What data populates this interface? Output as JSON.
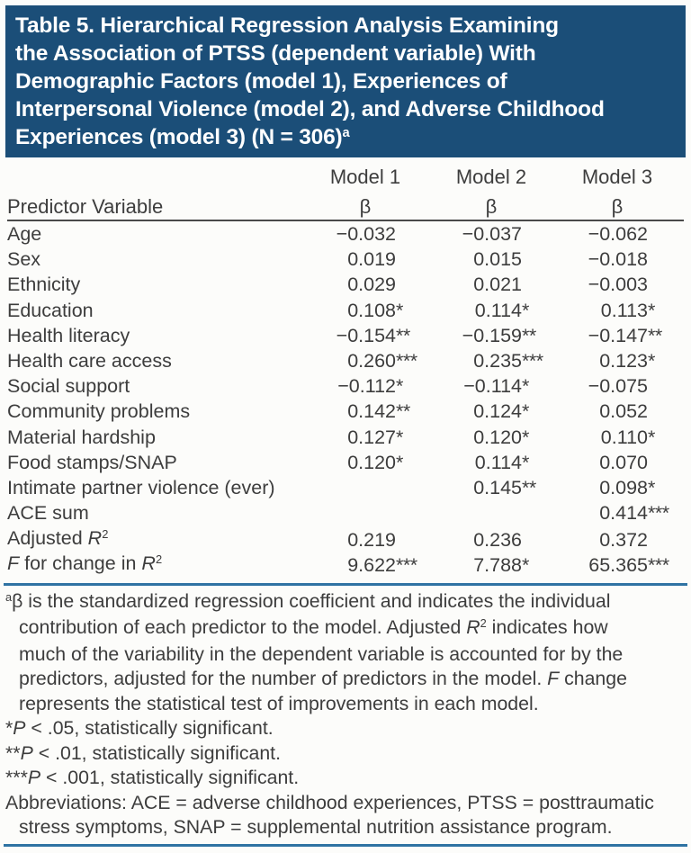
{
  "colors": {
    "title_bg": "#1b4e78",
    "title_text": "#ffffff",
    "body_text": "#3d3d3d",
    "header_rule": "#4a4a4a",
    "blue_rule": "#2f73a3",
    "page_bg": "#fcfcfa"
  },
  "title": {
    "lines": [
      [
        {
          "t": "Table 5. Hierarchical Regression Analysis Examining"
        }
      ],
      [
        {
          "t": "the Association of PTSS (dependent variable) With"
        }
      ],
      [
        {
          "t": "Demographic Factors (model 1), Experiences of"
        }
      ],
      [
        {
          "t": "Interpersonal Violence (model 2), and Adverse Childhood"
        }
      ],
      [
        {
          "t": "Experiences (model 3) (N = 306)"
        },
        {
          "t": "a",
          "sup": true
        }
      ]
    ]
  },
  "table": {
    "predictor_header": "Predictor Variable",
    "model_headers": [
      "Model 1",
      "Model 2",
      "Model 3"
    ],
    "beta_symbol": "β",
    "rows": [
      {
        "label": [
          {
            "t": "Age"
          }
        ],
        "values": [
          {
            "n": "−0.032",
            "s": ""
          },
          {
            "n": "−0.037",
            "s": ""
          },
          {
            "n": "−0.062",
            "s": ""
          }
        ]
      },
      {
        "label": [
          {
            "t": "Sex"
          }
        ],
        "values": [
          {
            "n": "0.019",
            "s": ""
          },
          {
            "n": "0.015",
            "s": ""
          },
          {
            "n": "−0.018",
            "s": ""
          }
        ]
      },
      {
        "label": [
          {
            "t": "Ethnicity"
          }
        ],
        "values": [
          {
            "n": "0.029",
            "s": ""
          },
          {
            "n": "0.021",
            "s": ""
          },
          {
            "n": "−0.003",
            "s": ""
          }
        ]
      },
      {
        "label": [
          {
            "t": "Education"
          }
        ],
        "values": [
          {
            "n": "0.108",
            "s": "*"
          },
          {
            "n": "0.114",
            "s": "*"
          },
          {
            "n": "0.113",
            "s": "*"
          }
        ]
      },
      {
        "label": [
          {
            "t": "Health literacy"
          }
        ],
        "values": [
          {
            "n": "−0.154",
            "s": "**"
          },
          {
            "n": "−0.159",
            "s": "**"
          },
          {
            "n": "−0.147",
            "s": "**"
          }
        ]
      },
      {
        "label": [
          {
            "t": "Health care access"
          }
        ],
        "values": [
          {
            "n": "0.260",
            "s": "***"
          },
          {
            "n": "0.235",
            "s": "***"
          },
          {
            "n": "0.123",
            "s": "*"
          }
        ]
      },
      {
        "label": [
          {
            "t": "Social support"
          }
        ],
        "values": [
          {
            "n": "−0.112",
            "s": "*"
          },
          {
            "n": "−0.114",
            "s": "*"
          },
          {
            "n": "−0.075",
            "s": ""
          }
        ]
      },
      {
        "label": [
          {
            "t": "Community problems"
          }
        ],
        "values": [
          {
            "n": "0.142",
            "s": "**"
          },
          {
            "n": "0.124",
            "s": "*"
          },
          {
            "n": "0.052",
            "s": ""
          }
        ]
      },
      {
        "label": [
          {
            "t": "Material hardship"
          }
        ],
        "values": [
          {
            "n": "0.127",
            "s": "*"
          },
          {
            "n": "0.120",
            "s": "*"
          },
          {
            "n": "0.110",
            "s": "*"
          }
        ]
      },
      {
        "label": [
          {
            "t": "Food stamps/SNAP"
          }
        ],
        "values": [
          {
            "n": "0.120",
            "s": "*"
          },
          {
            "n": "0.114",
            "s": "*"
          },
          {
            "n": "0.070",
            "s": ""
          }
        ]
      },
      {
        "label": [
          {
            "t": "Intimate partner violence (ever)"
          }
        ],
        "values": [
          {
            "n": "",
            "s": ""
          },
          {
            "n": "0.145",
            "s": "**"
          },
          {
            "n": "0.098",
            "s": "*"
          }
        ]
      },
      {
        "label": [
          {
            "t": "ACE sum"
          }
        ],
        "values": [
          {
            "n": "",
            "s": ""
          },
          {
            "n": "",
            "s": ""
          },
          {
            "n": "0.414",
            "s": "***"
          }
        ]
      },
      {
        "label": [
          {
            "t": "Adjusted "
          },
          {
            "t": "R",
            "i": true
          },
          {
            "t": "2",
            "sup": true
          }
        ],
        "values": [
          {
            "n": "0.219",
            "s": ""
          },
          {
            "n": "0.236",
            "s": ""
          },
          {
            "n": "0.372",
            "s": ""
          }
        ]
      },
      {
        "label": [
          {
            "t": "F",
            "i": true
          },
          {
            "t": " for change in "
          },
          {
            "t": "R",
            "i": true
          },
          {
            "t": "2",
            "sup": true
          }
        ],
        "values": [
          {
            "n": "9.622",
            "s": "***"
          },
          {
            "n": "7.788",
            "s": "*"
          },
          {
            "n": "65.365",
            "s": "***"
          }
        ]
      }
    ]
  },
  "footnotes": [
    {
      "lines": [
        {
          "indent": false,
          "segs": [
            {
              "t": "a",
              "sup": true
            },
            {
              "t": "β is the standardized regression coefficient and indicates the individual"
            }
          ]
        },
        {
          "indent": true,
          "segs": [
            {
              "t": "contribution of each predictor to the model. Adjusted "
            },
            {
              "t": "R",
              "i": true
            },
            {
              "t": "2",
              "sup": true
            },
            {
              "t": " indicates how"
            }
          ]
        },
        {
          "indent": true,
          "segs": [
            {
              "t": "much of the variability in the dependent variable is accounted for by the"
            }
          ]
        },
        {
          "indent": true,
          "segs": [
            {
              "t": "predictors, adjusted for the number of predictors in the model. "
            },
            {
              "t": "F",
              "i": true
            },
            {
              "t": " change"
            }
          ]
        },
        {
          "indent": true,
          "segs": [
            {
              "t": "represents the statistical test of improvements in each model."
            }
          ]
        }
      ]
    },
    {
      "lines": [
        {
          "indent": false,
          "segs": [
            {
              "t": "*"
            },
            {
              "t": "P",
              "i": true
            },
            {
              "t": " < .05, statistically significant."
            }
          ]
        }
      ]
    },
    {
      "lines": [
        {
          "indent": false,
          "segs": [
            {
              "t": "**"
            },
            {
              "t": "P",
              "i": true
            },
            {
              "t": " < .01, statistically significant."
            }
          ]
        }
      ]
    },
    {
      "lines": [
        {
          "indent": false,
          "segs": [
            {
              "t": "***"
            },
            {
              "t": "P",
              "i": true
            },
            {
              "t": " < .001, statistically significant."
            }
          ]
        }
      ]
    },
    {
      "lines": [
        {
          "indent": false,
          "segs": [
            {
              "t": "Abbreviations: ACE = adverse childhood experiences, PTSS = posttraumatic"
            }
          ]
        },
        {
          "indent": true,
          "segs": [
            {
              "t": "stress symptoms, SNAP = supplemental nutrition assistance program."
            }
          ]
        }
      ]
    }
  ]
}
